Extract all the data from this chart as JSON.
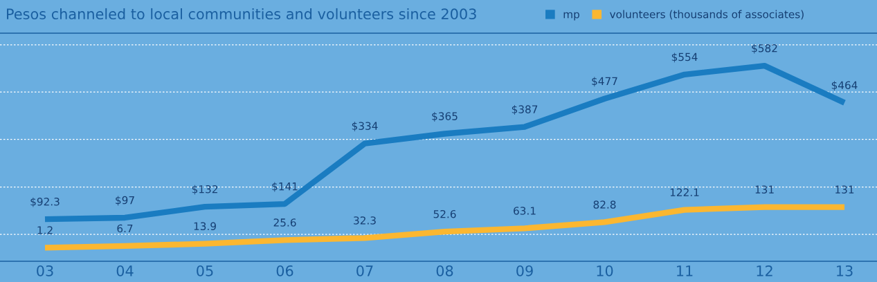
{
  "chart_data": {
    "type": "line",
    "title": "Pesos channeled to local communities and volunteers since 2003",
    "categories": [
      "03",
      "04",
      "05",
      "06",
      "07",
      "08",
      "09",
      "10",
      "11",
      "12",
      "13"
    ],
    "series": [
      {
        "name": "mp",
        "color": "#1a7cc1",
        "values": [
          92.3,
          97,
          132,
          141,
          334,
          365,
          387,
          477,
          554,
          582,
          464
        ],
        "value_labels": [
          "$92.3",
          "$97",
          "$132",
          "$141",
          "$334",
          "$365",
          "$387",
          "$477",
          "$554",
          "$582",
          "$464"
        ]
      },
      {
        "name": "volunteers (thousands of associates)",
        "color": "#fbb731",
        "values": [
          1.2,
          6.7,
          13.9,
          25.6,
          32.3,
          52.6,
          63.1,
          82.8,
          122.1,
          131,
          131
        ],
        "value_labels": [
          "1.2",
          "6.7",
          "13.9",
          "25.6",
          "32.3",
          "52.6",
          "63.1",
          "82.8",
          "122.1",
          "131",
          "131"
        ]
      }
    ],
    "ylim": [
      -42,
      686
    ],
    "yticks": [
      {
        "value": 44,
        "label": null
      },
      {
        "value": 195,
        "label": null
      },
      {
        "value": 347,
        "label": null
      },
      {
        "value": 498,
        "label": null
      },
      {
        "value": 649,
        "label": null
      }
    ],
    "grid": "y",
    "legend": "top right",
    "tick_labels": "x",
    "marker": "none",
    "line_style": "solid"
  }
}
